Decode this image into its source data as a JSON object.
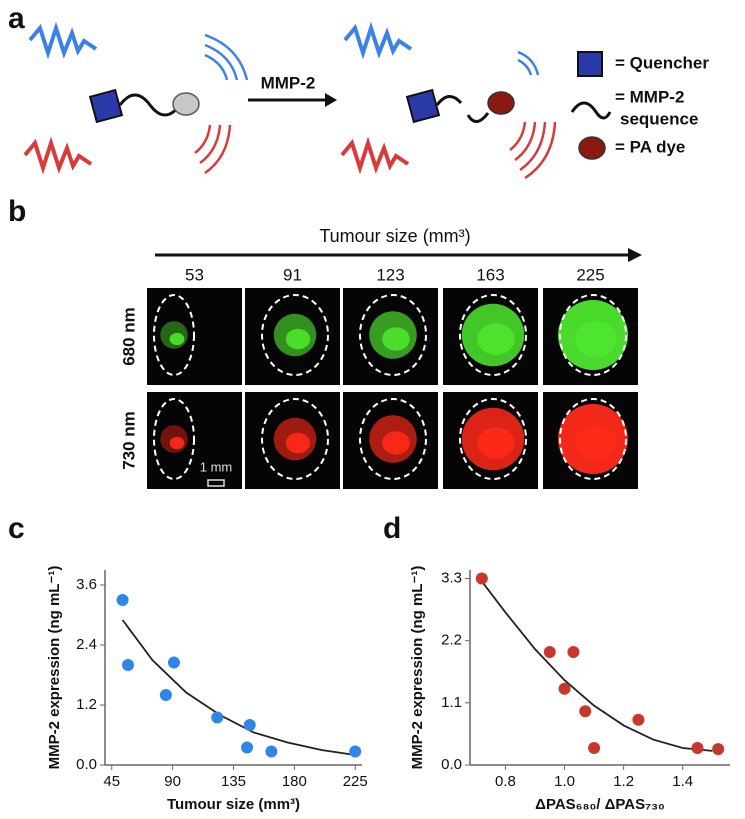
{
  "panel_a": {
    "label": "a",
    "arrow_label": "MMP-2",
    "legend": [
      "= Quencher",
      "= MMP-2",
      "sequence",
      "= PA dye"
    ]
  },
  "panel_b": {
    "label": "b",
    "axis_title": "Tumour size (mm³)",
    "sizes": [
      53,
      91,
      123,
      163,
      225
    ],
    "rows": [
      "680 nm",
      "730 nm"
    ],
    "scale_bar": "1 mm"
  },
  "panel_c_label": "c",
  "panel_d_label": "d",
  "chart_data": [
    {
      "type": "scatter",
      "xlabel": "Tumour size (mm³)",
      "ylabel": "MMP-2 expression (ng mL⁻¹)",
      "xlim": [
        40,
        230
      ],
      "xticks": [
        45,
        90,
        135,
        180,
        225
      ],
      "ylim": [
        0,
        3.9
      ],
      "yticks": [
        {
          "value": 0,
          "label": "0.0"
        },
        1.2,
        2.4,
        3.6
      ],
      "series": [
        {
          "mode": "markers",
          "color": "#2f86e8",
          "x": [
            53,
            57,
            85,
            91,
            123,
            147,
            145,
            163,
            225
          ],
          "values": [
            3.3,
            2.0,
            1.4,
            2.05,
            0.95,
            0.8,
            0.35,
            0.27,
            0.27
          ]
        },
        {
          "mode": "line",
          "color": "#222222",
          "x": [
            53,
            75,
            100,
            125,
            150,
            175,
            200,
            225
          ],
          "values": [
            2.9,
            2.1,
            1.45,
            1.0,
            0.65,
            0.45,
            0.3,
            0.2
          ]
        }
      ]
    },
    {
      "type": "scatter",
      "xlabel": "ΔPAS₆₈₀/ ΔPAS₇₃₀",
      "ylabel": "MMP-2 expression (ng mL⁻¹)",
      "xlim": [
        0.68,
        1.56
      ],
      "xticks": [
        0.8,
        {
          "value": 1,
          "label": "1.0"
        },
        1.2,
        1.4
      ],
      "ylim": [
        0,
        3.45
      ],
      "yticks": [
        {
          "value": 0,
          "label": "0.0"
        },
        1.1,
        2.2,
        3.3
      ],
      "series": [
        {
          "mode": "markers",
          "color": "#c8372d",
          "x": [
            0.72,
            0.95,
            1.0,
            1.03,
            1.07,
            1.1,
            1.25,
            1.45,
            1.52
          ],
          "values": [
            3.3,
            2.0,
            1.35,
            2.0,
            0.95,
            0.3,
            0.8,
            0.3,
            0.28
          ]
        },
        {
          "mode": "line",
          "color": "#222222",
          "x": [
            0.72,
            0.8,
            0.9,
            1.0,
            1.1,
            1.2,
            1.3,
            1.4,
            1.5
          ],
          "values": [
            3.25,
            2.7,
            2.05,
            1.5,
            1.05,
            0.7,
            0.45,
            0.3,
            0.25
          ]
        }
      ]
    }
  ]
}
